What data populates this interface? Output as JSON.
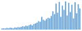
{
  "chart_data": {
    "type": "bar",
    "categories": [
      null,
      null,
      null,
      null,
      null,
      null,
      null,
      null,
      null,
      null,
      null,
      null,
      null,
      null,
      null,
      null,
      null,
      null,
      null,
      null,
      null,
      null,
      null,
      null,
      null,
      null,
      null,
      null,
      null,
      null,
      null,
      null,
      null,
      null,
      null,
      null,
      null,
      null,
      null,
      null,
      null,
      null,
      null,
      null,
      null,
      null,
      null,
      null,
      null,
      null
    ],
    "values": [
      4,
      5,
      4,
      6,
      5,
      7,
      6,
      5,
      8,
      7,
      9,
      8,
      10,
      12,
      11,
      14,
      13,
      16,
      18,
      15,
      20,
      22,
      25,
      30,
      28,
      45,
      35,
      32,
      38,
      42,
      40,
      48,
      65,
      55,
      92,
      60,
      98,
      45,
      85,
      70,
      100,
      50,
      95,
      62,
      88,
      40,
      97,
      58,
      90,
      75
    ],
    "color": "#5b9bd5",
    "ylim": [
      0,
      100
    ],
    "grid": false,
    "tick_labels": false
  }
}
